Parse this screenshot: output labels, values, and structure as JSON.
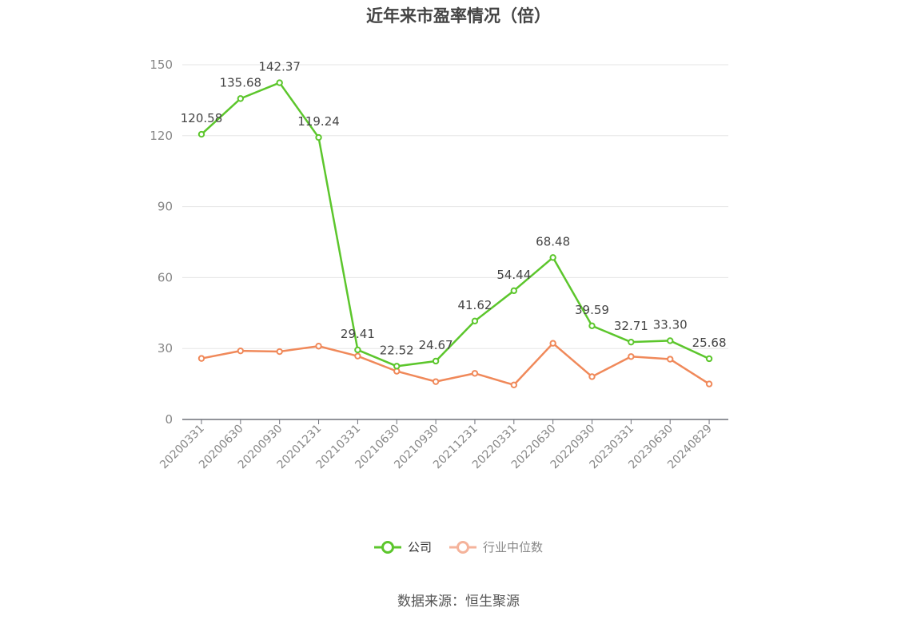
{
  "chart_data": {
    "type": "line",
    "title": "近年来市盈率情况（倍）",
    "categories": [
      "20200331",
      "20200630",
      "20200930",
      "20201231",
      "20210331",
      "20210630",
      "20210930",
      "20211231",
      "20220331",
      "20220630",
      "20220930",
      "20230331",
      "20230630",
      "20240829"
    ],
    "series": [
      {
        "name": "公司",
        "color": "#5cc62c",
        "values": [
          120.58,
          135.68,
          142.37,
          119.24,
          29.41,
          22.52,
          24.67,
          41.62,
          54.44,
          68.48,
          39.59,
          32.71,
          33.3,
          25.68
        ],
        "labels": [
          "120.58",
          "135.68",
          "142.37",
          "119.24",
          "29.41",
          "22.52",
          "24.67",
          "41.62",
          "54.44",
          "68.48",
          "39.59",
          "32.71",
          "33.30",
          "25.68"
        ]
      },
      {
        "name": "行业中位数",
        "color": "#f0895a",
        "values": [
          25.8,
          29.0,
          28.7,
          31.0,
          26.8,
          20.4,
          16.0,
          19.5,
          14.6,
          32.2,
          18.1,
          26.6,
          25.5,
          15.0
        ]
      }
    ],
    "ylim": [
      0,
      150
    ],
    "yticks": [
      0,
      30,
      60,
      90,
      120,
      150
    ],
    "grid": true,
    "legend_position": "bottom"
  },
  "source_text": "数据来源：恒生聚源"
}
